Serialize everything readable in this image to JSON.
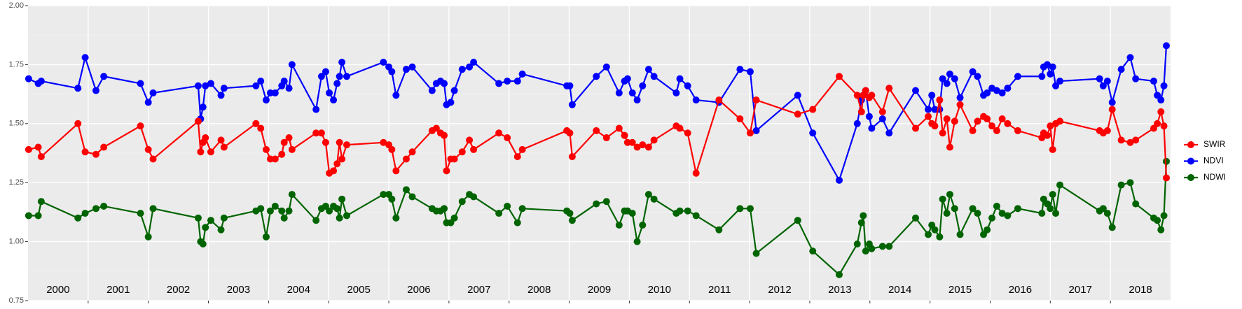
{
  "chart_data": {
    "type": "line",
    "x": [
      2000.01,
      2000.17,
      2000.22,
      2000.83,
      2000.95,
      2001.13,
      2001.26,
      2001.87,
      2002.0,
      2002.08,
      2002.83,
      2002.87,
      2002.91,
      2002.95,
      2003.04,
      2003.21,
      2003.26,
      2003.79,
      2003.87,
      2003.96,
      2004.03,
      2004.11,
      2004.22,
      2004.26,
      2004.34,
      2004.39,
      2004.79,
      2004.88,
      2004.95,
      2005.01,
      2005.08,
      2005.14,
      2005.18,
      2005.22,
      2005.3,
      2005.91,
      2006.0,
      2006.05,
      2006.12,
      2006.29,
      2006.39,
      2006.72,
      2006.79,
      2006.86,
      2006.92,
      2006.96,
      2007.03,
      2007.09,
      2007.22,
      2007.34,
      2007.41,
      2007.83,
      2007.97,
      2008.14,
      2008.22,
      2008.96,
      2009.01,
      2009.05,
      2009.45,
      2009.62,
      2009.83,
      2009.92,
      2009.97,
      2010.05,
      2010.13,
      2010.22,
      2010.32,
      2010.41,
      2010.78,
      2010.84,
      2010.97,
      2011.11,
      2011.49,
      2011.84,
      2012.01,
      2012.11,
      2012.8,
      2013.05,
      2013.49,
      2013.79,
      2013.86,
      2013.89,
      2013.93,
      2013.99,
      2014.03,
      2014.21,
      2014.32,
      2014.76,
      2014.97,
      2015.03,
      2015.08,
      2015.16,
      2015.21,
      2015.28,
      2015.33,
      2015.41,
      2015.5,
      2015.71,
      2015.79,
      2015.89,
      2015.95,
      2016.03,
      2016.11,
      2016.2,
      2016.29,
      2016.46,
      2016.86,
      2016.89,
      2016.95,
      2017.0,
      2017.04,
      2017.09,
      2017.16,
      2017.82,
      2017.88,
      2017.95,
      2018.03,
      2018.18,
      2018.33,
      2018.42,
      2018.72,
      2018.78,
      2018.84,
      2018.89,
      2018.93
    ],
    "series": [
      {
        "name": "SWIR",
        "color": "#ff0000",
        "values": [
          1.39,
          1.4,
          1.36,
          1.5,
          1.38,
          1.37,
          1.4,
          1.49,
          1.39,
          1.35,
          1.51,
          1.38,
          1.42,
          1.44,
          1.38,
          1.43,
          1.4,
          1.5,
          1.48,
          1.39,
          1.35,
          1.35,
          1.37,
          1.42,
          1.44,
          1.39,
          1.46,
          1.46,
          1.42,
          1.29,
          1.3,
          1.33,
          1.42,
          1.35,
          1.41,
          1.42,
          1.41,
          1.39,
          1.3,
          1.35,
          1.38,
          1.47,
          1.48,
          1.46,
          1.45,
          1.3,
          1.35,
          1.35,
          1.38,
          1.43,
          1.39,
          1.46,
          1.44,
          1.36,
          1.39,
          1.47,
          1.46,
          1.36,
          1.47,
          1.44,
          1.48,
          1.45,
          1.42,
          1.42,
          1.4,
          1.41,
          1.4,
          1.43,
          1.49,
          1.48,
          1.46,
          1.29,
          1.6,
          1.52,
          1.46,
          1.6,
          1.54,
          1.56,
          1.7,
          1.62,
          1.55,
          1.62,
          1.64,
          1.61,
          1.62,
          1.55,
          1.65,
          1.48,
          1.53,
          1.5,
          1.49,
          1.6,
          1.46,
          1.52,
          1.4,
          1.51,
          1.58,
          1.47,
          1.51,
          1.53,
          1.52,
          1.49,
          1.47,
          1.52,
          1.5,
          1.47,
          1.44,
          1.46,
          1.45,
          1.49,
          1.39,
          1.5,
          1.51,
          1.47,
          1.46,
          1.47,
          1.56,
          1.43,
          1.42,
          1.43,
          1.48,
          1.5,
          1.55,
          1.49,
          1.27
        ]
      },
      {
        "name": "NDVI",
        "color": "#0000ff",
        "values": [
          1.69,
          1.67,
          1.68,
          1.65,
          1.78,
          1.64,
          1.7,
          1.67,
          1.59,
          1.63,
          1.66,
          1.52,
          1.57,
          1.66,
          1.67,
          1.62,
          1.65,
          1.66,
          1.68,
          1.6,
          1.63,
          1.63,
          1.66,
          1.68,
          1.65,
          1.75,
          1.56,
          1.7,
          1.72,
          1.63,
          1.6,
          1.67,
          1.7,
          1.76,
          1.7,
          1.76,
          1.74,
          1.72,
          1.62,
          1.73,
          1.74,
          1.64,
          1.67,
          1.68,
          1.67,
          1.58,
          1.59,
          1.64,
          1.73,
          1.74,
          1.76,
          1.67,
          1.68,
          1.68,
          1.71,
          1.66,
          1.66,
          1.58,
          1.7,
          1.74,
          1.63,
          1.68,
          1.69,
          1.63,
          1.6,
          1.66,
          1.73,
          1.7,
          1.63,
          1.69,
          1.66,
          1.6,
          1.59,
          1.73,
          1.72,
          1.47,
          1.62,
          1.46,
          1.26,
          1.5,
          1.6,
          1.62,
          1.64,
          1.53,
          1.48,
          1.52,
          1.46,
          1.64,
          1.56,
          1.62,
          1.56,
          1.56,
          1.69,
          1.67,
          1.71,
          1.69,
          1.61,
          1.72,
          1.7,
          1.62,
          1.63,
          1.65,
          1.64,
          1.63,
          1.65,
          1.7,
          1.7,
          1.74,
          1.75,
          1.71,
          1.74,
          1.66,
          1.68,
          1.69,
          1.66,
          1.68,
          1.59,
          1.73,
          1.78,
          1.69,
          1.68,
          1.62,
          1.6,
          1.66,
          1.83
        ]
      },
      {
        "name": "NDWI",
        "color": "#006400",
        "values": [
          1.11,
          1.11,
          1.17,
          1.1,
          1.12,
          1.14,
          1.15,
          1.12,
          1.02,
          1.14,
          1.1,
          1.0,
          0.99,
          1.06,
          1.09,
          1.05,
          1.1,
          1.13,
          1.14,
          1.02,
          1.13,
          1.15,
          1.13,
          1.1,
          1.13,
          1.2,
          1.09,
          1.14,
          1.15,
          1.13,
          1.15,
          1.14,
          1.1,
          1.18,
          1.11,
          1.2,
          1.2,
          1.18,
          1.1,
          1.22,
          1.19,
          1.14,
          1.13,
          1.13,
          1.14,
          1.08,
          1.08,
          1.1,
          1.17,
          1.2,
          1.19,
          1.12,
          1.15,
          1.08,
          1.14,
          1.13,
          1.12,
          1.09,
          1.16,
          1.17,
          1.07,
          1.13,
          1.13,
          1.12,
          1.0,
          1.07,
          1.2,
          1.18,
          1.12,
          1.13,
          1.13,
          1.11,
          1.05,
          1.14,
          1.14,
          0.95,
          1.09,
          0.96,
          0.86,
          0.99,
          1.08,
          1.11,
          0.96,
          0.99,
          0.97,
          0.98,
          0.98,
          1.1,
          1.03,
          1.07,
          1.05,
          1.02,
          1.18,
          1.12,
          1.2,
          1.14,
          1.03,
          1.14,
          1.12,
          1.03,
          1.05,
          1.1,
          1.15,
          1.12,
          1.11,
          1.14,
          1.12,
          1.18,
          1.16,
          1.14,
          1.2,
          1.12,
          1.24,
          1.13,
          1.14,
          1.12,
          1.06,
          1.24,
          1.25,
          1.16,
          1.1,
          1.09,
          1.05,
          1.11,
          1.34
        ]
      }
    ],
    "xlim": [
      2000,
      2019
    ],
    "xticks": [
      2001,
      2002,
      2003,
      2004,
      2005,
      2006,
      2007,
      2008,
      2009,
      2010,
      2011,
      2012,
      2013,
      2014,
      2015,
      2016,
      2017,
      2018
    ],
    "year_labels": [
      "2000",
      "2001",
      "2002",
      "2003",
      "2004",
      "2005",
      "2006",
      "2007",
      "2008",
      "2009",
      "2010",
      "2011",
      "2012",
      "2013",
      "2014",
      "2015",
      "2016",
      "2017",
      "2018"
    ],
    "ylim": [
      0.75,
      2.0
    ],
    "yticks": [
      0.75,
      {
        "value": 1.0,
        "label": "1.00"
      },
      1.25,
      {
        "value": 1.5,
        "label": "1.50"
      },
      1.75,
      {
        "value": 2.0,
        "label": "2.00"
      }
    ],
    "grid": true,
    "legend": "right"
  }
}
